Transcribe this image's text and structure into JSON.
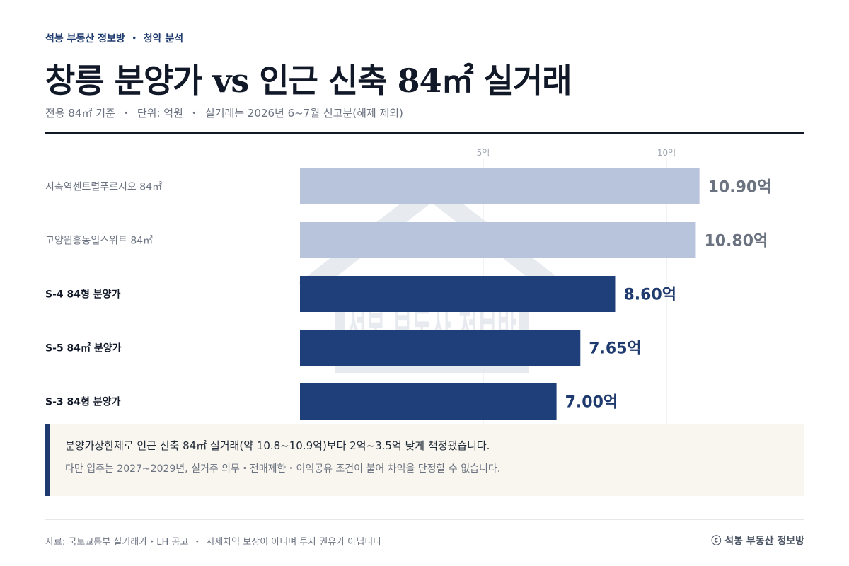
{
  "header": {
    "brand": "석봉 부동산 정보방",
    "section": "청약 분석",
    "title": "창릉 분양가 vs 인근 신축 84㎡ 실거래",
    "subtitle_parts": [
      "전용 84㎡ 기준",
      "단위: 억원",
      "실거래는 2026년 6~7월 신고분(해제 제외)"
    ]
  },
  "chart_data": {
    "type": "bar",
    "orientation": "horizontal",
    "categories": [
      "지축역센트럴푸르지오 84㎡",
      "고양원흥동일스위트 84㎡",
      "S-4 84형 분양가",
      "S-5 84㎡ 분양가",
      "S-3 84형 분양가"
    ],
    "values": [
      10.9,
      10.8,
      8.6,
      7.65,
      7.0
    ],
    "value_labels": [
      "10.90억",
      "10.80억",
      "8.60억",
      "7.65억",
      "7.00억"
    ],
    "groups": [
      "reference",
      "reference",
      "offer",
      "offer",
      "offer"
    ],
    "xlim": [
      0,
      13.5
    ],
    "ticks": [
      5,
      10
    ],
    "tick_labels": [
      "5억",
      "10억"
    ],
    "grid": true,
    "colors": {
      "reference": "#b8c3dc",
      "offer": "#1e3f7a",
      "reference_label": "#6b7280",
      "offer_label": "#1e3a6e"
    }
  },
  "callout": {
    "main": "분양가상한제로 인근 신축 84㎡ 실거래(약 10.8~10.9억)보다 2억~3.5억 낮게 책정됐습니다.",
    "sub": "다만 입주는 2027~2029년, 실거주 의무・전매제한・이익공유 조건이 붙어 차익을 단정할 수 없습니다."
  },
  "watermark_text": "석봉 부동산 정보방",
  "footer": {
    "source": "자료: 국토교통부 실거래가・LH 공고",
    "disclaimer": "시세차익 보장이 아니며 투자 권유가 아닙니다",
    "copyright": "ⓒ 석봉 부동산 정보방"
  }
}
